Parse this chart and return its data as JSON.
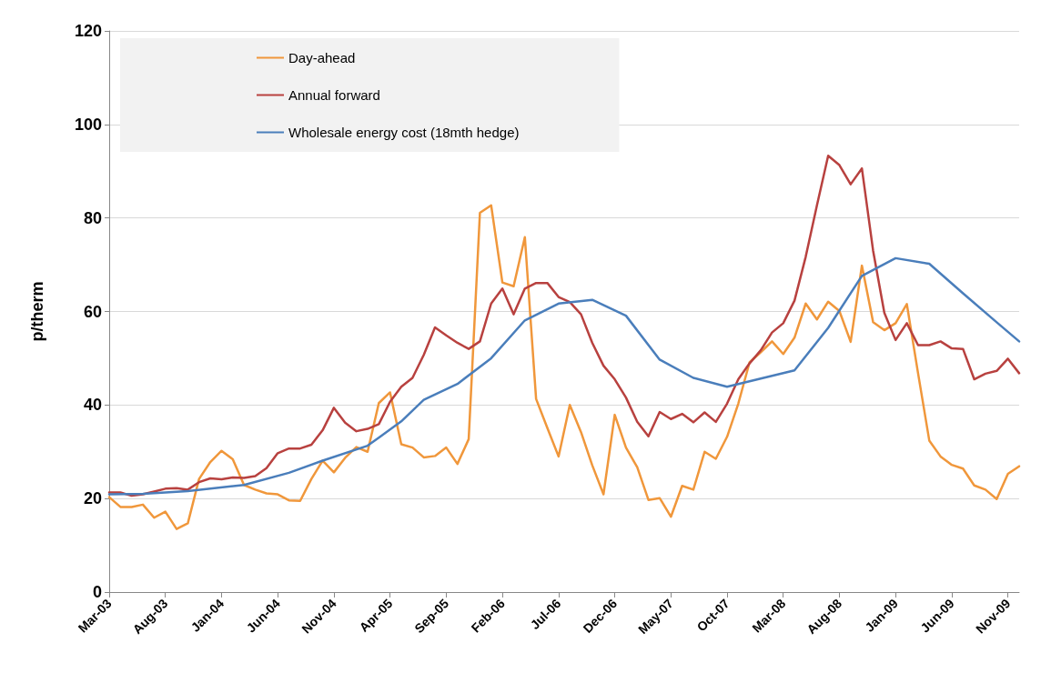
{
  "chart_data": {
    "type": "line",
    "ylabel": "p/therm",
    "categories": [
      "Mar-03",
      null,
      null,
      null,
      null,
      "Aug-03",
      null,
      null,
      null,
      null,
      "Jan-04",
      null,
      null,
      null,
      null,
      "Jun-04",
      null,
      null,
      null,
      null,
      "Nov-04",
      null,
      null,
      null,
      null,
      "Apr-05",
      null,
      null,
      null,
      null,
      "Sep-05",
      null,
      null,
      null,
      null,
      "Feb-06",
      null,
      null,
      null,
      null,
      "Jul-06",
      null,
      null,
      null,
      null,
      "Dec-06",
      null,
      null,
      null,
      null,
      "May-07",
      null,
      null,
      null,
      null,
      "Oct-07",
      null,
      null,
      null,
      null,
      "Mar-08",
      null,
      null,
      null,
      null,
      "Aug-08",
      null,
      null,
      null,
      null,
      "Jan-09",
      null,
      null,
      null,
      null,
      "Jun-09",
      null,
      null,
      null,
      null,
      "Nov-09",
      null
    ],
    "series": [
      {
        "name": "Day-ahead",
        "color": "#f0973b",
        "values": [
          20.3,
          18.2,
          18.2,
          18.7,
          15.9,
          17.2,
          13.5,
          14.7,
          24.2,
          27.8,
          30.2,
          28.4,
          22.9,
          21.9,
          21.1,
          20.9,
          19.6,
          19.5,
          24.2,
          28.1,
          25.6,
          28.7,
          31.0,
          30.0,
          40.4,
          42.7,
          31.6,
          30.9,
          28.8,
          29.1,
          30.9,
          27.4,
          32.7,
          81.1,
          82.7,
          66.2,
          65.4,
          75.9,
          41.3,
          35.1,
          29.0,
          40.0,
          34.2,
          27.1,
          20.9,
          37.9,
          30.9,
          26.7,
          19.7,
          20.1,
          16.1,
          22.7,
          21.9,
          30.0,
          28.5,
          33.2,
          40.3,
          49.1,
          51.3,
          53.6,
          50.9,
          54.4,
          61.7,
          58.3,
          62.1,
          60.1,
          53.5,
          69.8,
          57.7,
          56.0,
          57.5,
          61.6,
          46.8,
          32.4,
          29.0,
          27.2,
          26.4,
          22.8,
          21.9,
          19.9,
          25.3,
          26.9
        ]
      },
      {
        "name": "Annual forward",
        "color": "#b8413f",
        "values": [
          21.3,
          21.3,
          20.6,
          20.9,
          21.5,
          22.1,
          22.2,
          21.9,
          23.5,
          24.3,
          24.1,
          24.5,
          24.4,
          24.8,
          26.5,
          29.7,
          30.7,
          30.7,
          31.5,
          34.6,
          39.4,
          36.2,
          34.4,
          34.9,
          35.9,
          40.7,
          43.9,
          45.8,
          50.7,
          56.6,
          54.9,
          53.3,
          52.0,
          53.6,
          61.7,
          64.9,
          59.4,
          64.9,
          66.1,
          66.1,
          63.1,
          62.0,
          59.4,
          53.3,
          48.4,
          45.5,
          41.6,
          36.4,
          33.3,
          38.5,
          37.0,
          38.1,
          36.3,
          38.4,
          36.4,
          40.3,
          45.5,
          48.9,
          51.7,
          55.5,
          57.5,
          62.3,
          71.7,
          82.7,
          93.3,
          91.3,
          87.2,
          90.6,
          73.0,
          59.7,
          53.9,
          57.5,
          52.8,
          52.8,
          53.6,
          52.1,
          52.0,
          45.5,
          46.7,
          47.3,
          49.9,
          46.8
        ]
      },
      {
        "name": "Wholesale energy cost (18mth hedge)",
        "color": "#4a7ebb",
        "values": [
          20.9,
          null,
          null,
          21.0,
          null,
          null,
          null,
          21.6,
          null,
          null,
          null,
          null,
          22.9,
          null,
          null,
          null,
          25.5,
          null,
          null,
          28.1,
          null,
          null,
          null,
          31.3,
          33.0,
          null,
          36.5,
          null,
          41.1,
          null,
          null,
          44.5,
          null,
          null,
          50.0,
          null,
          null,
          58.1,
          null,
          null,
          61.7,
          null,
          null,
          62.5,
          null,
          null,
          59.1,
          null,
          null,
          49.7,
          null,
          null,
          45.8,
          null,
          null,
          43.9,
          null,
          null,
          null,
          null,
          null,
          47.4,
          null,
          null,
          56.5,
          null,
          null,
          67.6,
          null,
          null,
          71.4,
          null,
          null,
          70.2,
          null,
          null,
          63.9,
          null,
          null,
          57.7,
          null,
          53.6
        ]
      }
    ],
    "ylim": [
      0,
      120
    ],
    "yticks": [
      0,
      20,
      40,
      60,
      80,
      100,
      120
    ],
    "grid": "y",
    "legend": "top left",
    "marker": "none",
    "line_style": "solid"
  }
}
